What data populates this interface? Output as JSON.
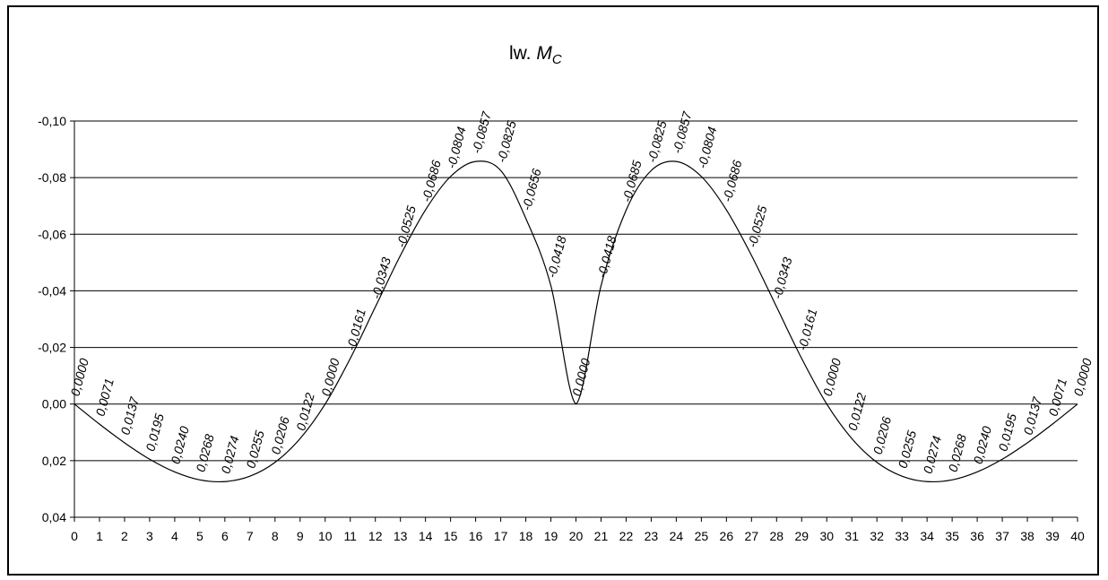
{
  "chart_data": {
    "type": "line",
    "title": "lw. M",
    "title_subscript": "C",
    "xlabel": "",
    "ylabel": "",
    "x": [
      0,
      1,
      2,
      3,
      4,
      5,
      6,
      7,
      8,
      9,
      10,
      11,
      12,
      13,
      14,
      15,
      16,
      17,
      18,
      19,
      20,
      21,
      22,
      23,
      24,
      25,
      26,
      27,
      28,
      29,
      30,
      31,
      32,
      33,
      34,
      35,
      36,
      37,
      38,
      39,
      40
    ],
    "x_ticks": [
      "0",
      "1",
      "2",
      "3",
      "4",
      "5",
      "6",
      "7",
      "8",
      "9",
      "10",
      "11",
      "12",
      "13",
      "14",
      "15",
      "16",
      "17",
      "18",
      "19",
      "20",
      "21",
      "22",
      "23",
      "24",
      "25",
      "26",
      "27",
      "28",
      "29",
      "30",
      "31",
      "32",
      "33",
      "34",
      "35",
      "36",
      "37",
      "38",
      "39",
      "40"
    ],
    "values": [
      0.0,
      0.0071,
      0.0137,
      0.0195,
      0.024,
      0.0268,
      0.0274,
      0.0255,
      0.0206,
      0.0122,
      0.0,
      -0.0161,
      -0.0343,
      -0.0525,
      -0.0686,
      -0.0804,
      -0.0857,
      -0.0825,
      -0.0656,
      -0.0418,
      0.0,
      -0.0418,
      -0.0685,
      -0.0825,
      -0.0857,
      -0.0804,
      -0.0686,
      -0.0525,
      -0.0343,
      -0.0161,
      0.0,
      0.0122,
      0.0206,
      0.0255,
      0.0274,
      0.0268,
      0.024,
      0.0195,
      0.0137,
      0.0071,
      0.0
    ],
    "data_labels": [
      "0,0000",
      "0,0071",
      "0,0137",
      "0,0195",
      "0,0240",
      "0,0268",
      "0,0274",
      "0,0255",
      "0,0206",
      "0,0122",
      "0,0000",
      "-0,0161",
      "-0,0343",
      "-0,0525",
      "-0,0686",
      "-0,0804",
      "-0,0857",
      "-0,0825",
      "-0,0656",
      "-0,0418",
      "0,0000",
      "-0,0418",
      "-0,0685",
      "-0,0825",
      "-0,0857",
      "-0,0804",
      "-0,0686",
      "-0,0525",
      "-0,0343",
      "-0,0161",
      "0,0000",
      "0,0122",
      "0,0206",
      "0,0255",
      "0,0274",
      "0,0268",
      "0,0240",
      "0,0195",
      "0,0137",
      "0,0071",
      "0,0000"
    ],
    "y_ticks": [
      -0.1,
      -0.08,
      -0.06,
      -0.04,
      -0.02,
      0.0,
      0.02,
      0.04
    ],
    "y_tick_labels": [
      "-0,10",
      "-0,08",
      "-0,06",
      "-0,04",
      "-0,02",
      "0,00",
      "0,02",
      "0,04"
    ],
    "ylim": [
      -0.1,
      0.04
    ],
    "y_inverted": true,
    "grid": true,
    "line_color": "#000000"
  }
}
